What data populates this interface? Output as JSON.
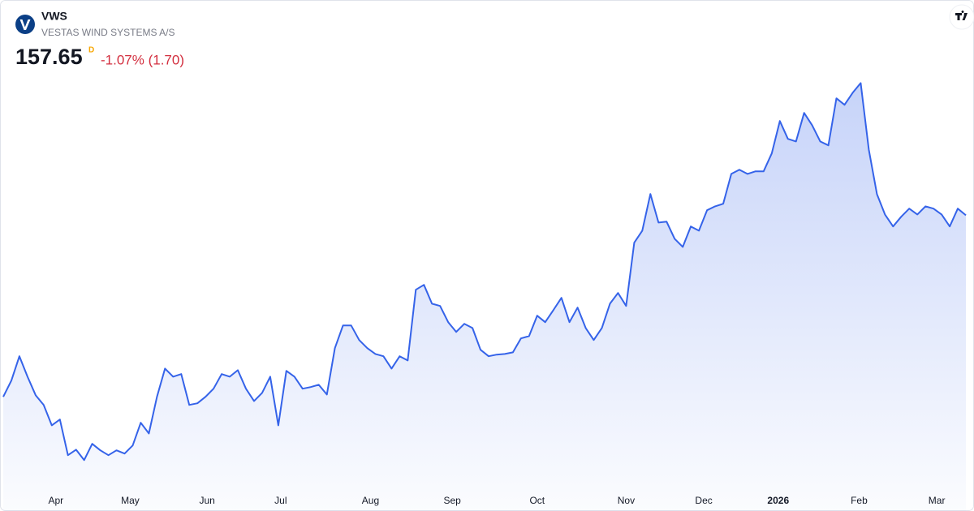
{
  "chart_data": {
    "type": "area",
    "symbol": "VWS",
    "name": "VESTAS WIND SYSTEMS A/S",
    "price": "157.65",
    "marker": "D",
    "change": "-1.07% (1.70)",
    "color": "#3563e9",
    "values": [
      101.7,
      106.7,
      114.2,
      107.9,
      102.2,
      99.2,
      92.9,
      94.7,
      83.7,
      85.4,
      82.2,
      87.2,
      85.2,
      83.7,
      85.2,
      84.2,
      86.7,
      93.7,
      90.4,
      101.7,
      110.4,
      107.9,
      108.7,
      99.2,
      99.7,
      101.7,
      104.2,
      108.7,
      107.9,
      109.9,
      104.2,
      100.4,
      102.9,
      107.9,
      92.9,
      109.7,
      107.9,
      104.2,
      104.7,
      105.4,
      102.4,
      116.7,
      123.7,
      123.7,
      119.2,
      116.7,
      114.9,
      114.2,
      110.4,
      114.2,
      112.9,
      134.7,
      136.2,
      130.4,
      129.7,
      124.7,
      121.7,
      124.2,
      122.9,
      116.2,
      114.2,
      114.7,
      114.9,
      115.4,
      119.7,
      120.4,
      126.7,
      124.7,
      128.4,
      132.2,
      124.7,
      129.2,
      122.9,
      119.2,
      122.9,
      130.4,
      133.7,
      129.7,
      149.2,
      152.9,
      164.2,
      155.4,
      155.7,
      150.4,
      147.9,
      154.2,
      152.9,
      159.2,
      160.4,
      161.2,
      170.4,
      171.7,
      170.4,
      171.2,
      171.2,
      176.7,
      186.7,
      181.2,
      180.4,
      189.2,
      185.4,
      180.4,
      179.2,
      193.7,
      191.7,
      195.4,
      198.4,
      177.9,
      164.2,
      157.9,
      154.2,
      157.2,
      159.7,
      157.9,
      160.4,
      159.7,
      157.9,
      154.2,
      159.7,
      157.65
    ],
    "ylim": [
      74,
      202
    ],
    "xlim": [
      0,
      119
    ],
    "xticks": [
      {
        "value": 6.5,
        "label": "Apr"
      },
      {
        "value": 15.7,
        "label": "May"
      },
      {
        "value": 25.2,
        "label": "Jun"
      },
      {
        "value": 34.3,
        "label": "Jul"
      },
      {
        "value": 45.4,
        "label": "Aug"
      },
      {
        "value": 55.5,
        "label": "Sep"
      },
      {
        "value": 66.0,
        "label": "Oct"
      },
      {
        "value": 77.0,
        "label": "Nov"
      },
      {
        "value": 86.6,
        "label": "Dec"
      },
      {
        "value": 95.8,
        "label": "2026"
      },
      {
        "value": 105.8,
        "label": "Feb"
      },
      {
        "value": 115.4,
        "label": "Mar"
      }
    ]
  }
}
